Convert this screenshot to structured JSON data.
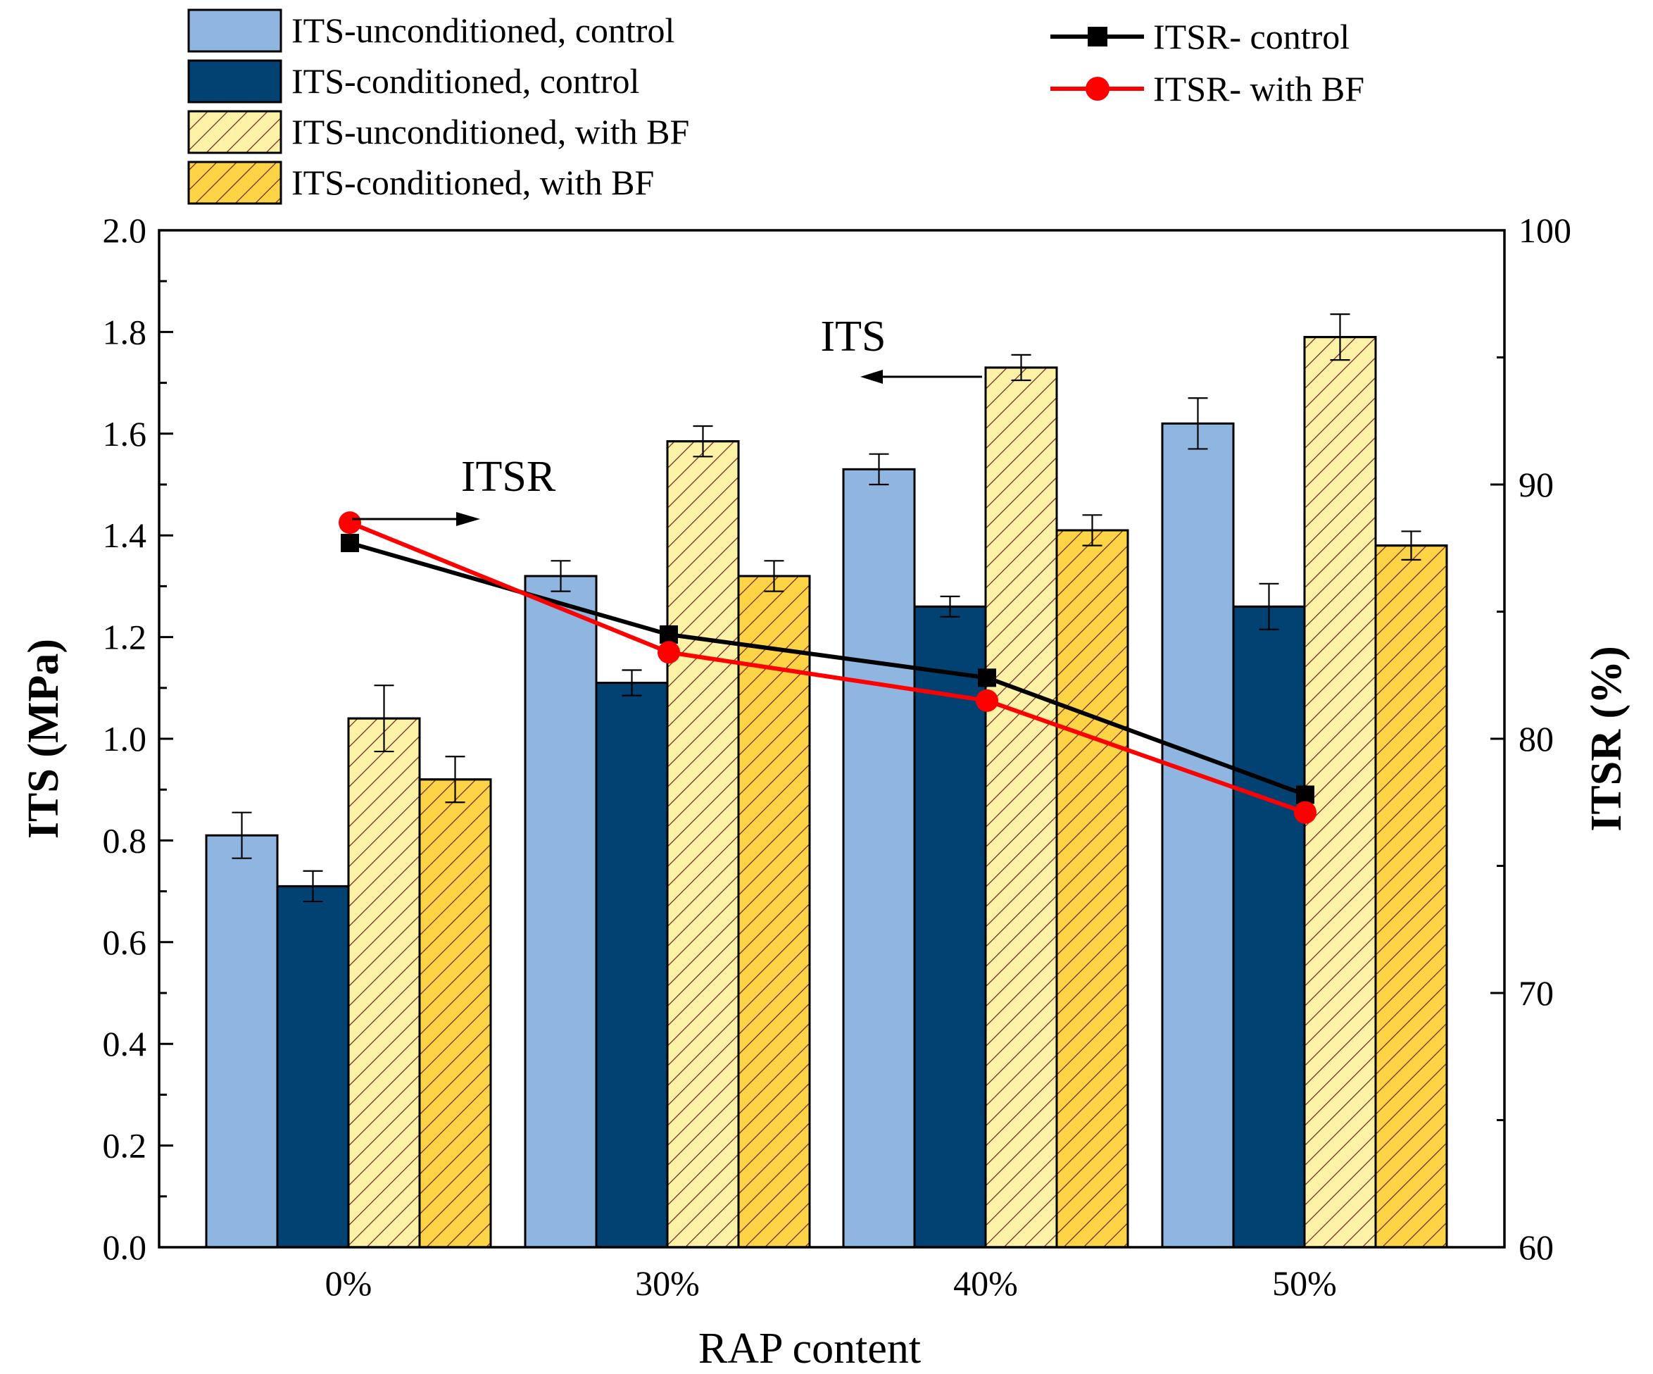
{
  "chart_data": {
    "type": "bar",
    "title": "",
    "xlabel": "RAP content",
    "ylabel": "ITS (MPa)",
    "y2label": "ITSR (%)",
    "ylim": [
      0,
      2.0
    ],
    "y2lim": [
      60,
      100
    ],
    "yticks": [
      "0.0",
      "0.2",
      "0.4",
      "0.6",
      "0.8",
      "1.0",
      "1.2",
      "1.4",
      "1.6",
      "1.8",
      "2.0"
    ],
    "y2ticks": [
      "60",
      "70",
      "80",
      "90",
      "100"
    ],
    "categories": [
      "0%",
      "30%",
      "40%",
      "50%"
    ],
    "series": [
      {
        "name": "ITS-unconditioned, control",
        "values": [
          0.81,
          1.32,
          1.53,
          1.62
        ],
        "errors": [
          0.045,
          0.03,
          0.03,
          0.05
        ],
        "color": "#8fb6e0",
        "hatch": false
      },
      {
        "name": "ITS-conditioned, control",
        "values": [
          0.71,
          1.11,
          1.26,
          1.26
        ],
        "errors": [
          0.03,
          0.025,
          0.02,
          0.045
        ],
        "color": "#024273",
        "hatch": false
      },
      {
        "name": "ITS-unconditioned, with BF",
        "values": [
          1.04,
          1.585,
          1.73,
          1.79
        ],
        "errors": [
          0.065,
          0.03,
          0.025,
          0.045
        ],
        "color": "#fdf2a6",
        "hatch": true
      },
      {
        "name": "ITS-conditioned, with BF",
        "values": [
          0.92,
          1.32,
          1.41,
          1.38
        ],
        "errors": [
          0.045,
          0.03,
          0.03,
          0.028
        ],
        "color": "#fed447",
        "hatch": true
      }
    ],
    "lines": [
      {
        "name": "ITSR- control",
        "values": [
          87.7,
          84.1,
          82.4,
          77.8
        ],
        "color": "#000000",
        "marker": "square"
      },
      {
        "name": "ITSR- with BF",
        "values": [
          88.5,
          83.4,
          81.5,
          77.1
        ],
        "color": "#ff0000",
        "marker": "circle"
      }
    ],
    "annotations": [
      {
        "text": "ITS",
        "direction": "left",
        "points_to": "left axis"
      },
      {
        "text": "ITSR",
        "direction": "right",
        "points_to": "right axis"
      }
    ],
    "legend_bars_position": "top-left",
    "legend_lines_position": "top-right",
    "grid": false
  }
}
